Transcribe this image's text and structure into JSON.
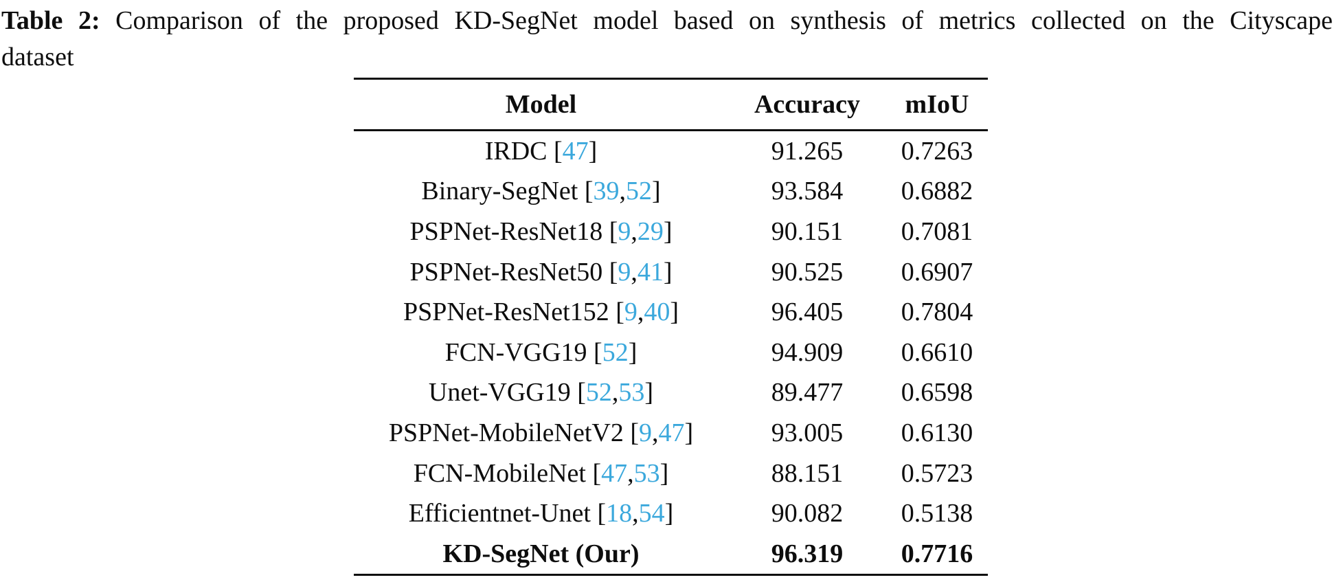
{
  "caption": {
    "label": "Table 2:",
    "line1": "Comparison of the proposed KD-SegNet model based on synthesis of metrics collected on the Cityscape",
    "line2": "dataset"
  },
  "colors": {
    "citation_link": "#3BA8DC",
    "text": "#0d0d0d"
  },
  "table": {
    "headers": [
      "Model",
      "Accuracy",
      "mIoU"
    ],
    "rows": [
      {
        "name": "IRDC",
        "refs": [
          "47"
        ],
        "accuracy": "91.265",
        "miou": "0.7263",
        "bold": false
      },
      {
        "name": "Binary-SegNet",
        "refs": [
          "39",
          "52"
        ],
        "accuracy": "93.584",
        "miou": "0.6882",
        "bold": false
      },
      {
        "name": "PSPNet-ResNet18",
        "refs": [
          "9",
          "29"
        ],
        "accuracy": "90.151",
        "miou": "0.7081",
        "bold": false
      },
      {
        "name": "PSPNet-ResNet50",
        "refs": [
          "9",
          "41"
        ],
        "accuracy": "90.525",
        "miou": "0.6907",
        "bold": false
      },
      {
        "name": "PSPNet-ResNet152",
        "refs": [
          "9",
          "40"
        ],
        "accuracy": "96.405",
        "miou": "0.7804",
        "bold": false
      },
      {
        "name": "FCN-VGG19",
        "refs": [
          "52"
        ],
        "accuracy": "94.909",
        "miou": "0.6610",
        "bold": false
      },
      {
        "name": "Unet-VGG19",
        "refs": [
          "52",
          "53"
        ],
        "accuracy": "89.477",
        "miou": "0.6598",
        "bold": false
      },
      {
        "name": "PSPNet-MobileNetV2",
        "refs": [
          "9",
          "47"
        ],
        "accuracy": "93.005",
        "miou": "0.6130",
        "bold": false
      },
      {
        "name": "FCN-MobileNet",
        "refs": [
          "47",
          "53"
        ],
        "accuracy": "88.151",
        "miou": "0.5723",
        "bold": false
      },
      {
        "name": "Efficientnet-Unet",
        "refs": [
          "18",
          "54"
        ],
        "accuracy": "90.082",
        "miou": "0.5138",
        "bold": false
      },
      {
        "name": "KD-SegNet (Our)",
        "refs": [],
        "accuracy": "96.319",
        "miou": "0.7716",
        "bold": true
      }
    ]
  }
}
